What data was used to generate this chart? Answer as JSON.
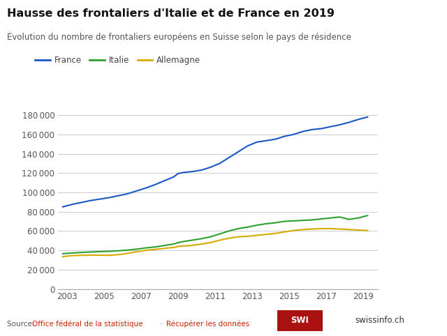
{
  "title": "Hausse des frontaliers d'Italie et de France en 2019",
  "subtitle": "Évolution du nombre de frontaliers européens en Suisse selon le pays de résidence",
  "legend": [
    "France",
    "Italie",
    "Allemagne"
  ],
  "colors": {
    "France": "#1a56c4",
    "Italie": "#2ca02c",
    "Allemagne": "#d4aa00"
  },
  "background_color": "#ffffff",
  "grid_color": "#cccccc",
  "sidebar_colors": [
    "#2d5f9e",
    "#2196b8",
    "#29a9d4"
  ],
  "sidebar_icons": [
    "f",
    "in",
    "w"
  ],
  "ylim": [
    0,
    200000
  ],
  "yticks": [
    0,
    20000,
    40000,
    60000,
    80000,
    100000,
    120000,
    140000,
    160000,
    180000
  ],
  "xticks": [
    2003,
    2005,
    2007,
    2009,
    2011,
    2013,
    2015,
    2017,
    2019
  ],
  "france": {
    "years": [
      2002.75,
      2003.25,
      2003.75,
      2004.25,
      2004.75,
      2005.25,
      2005.75,
      2006.25,
      2006.75,
      2007.25,
      2007.75,
      2008.25,
      2008.75,
      2009.0,
      2009.25,
      2009.75,
      2010.25,
      2010.75,
      2011.25,
      2011.75,
      2012.25,
      2012.75,
      2013.25,
      2013.75,
      2014.25,
      2014.75,
      2015.25,
      2015.75,
      2016.25,
      2016.75,
      2017.25,
      2017.75,
      2018.25,
      2018.75,
      2019.25
    ],
    "values": [
      85000,
      87500,
      89500,
      91500,
      93000,
      94500,
      96500,
      98500,
      101500,
      104500,
      108000,
      112000,
      116000,
      119500,
      120500,
      121500,
      123000,
      126000,
      130000,
      136000,
      142000,
      148000,
      152000,
      153500,
      155000,
      158000,
      160000,
      163000,
      165000,
      166000,
      168000,
      170000,
      172500,
      175500,
      178000
    ]
  },
  "italie": {
    "years": [
      2002.75,
      2003.25,
      2003.75,
      2004.25,
      2004.75,
      2005.25,
      2005.75,
      2006.25,
      2006.75,
      2007.25,
      2007.75,
      2008.25,
      2008.75,
      2009.0,
      2009.25,
      2009.75,
      2010.25,
      2010.75,
      2011.25,
      2011.75,
      2012.25,
      2012.75,
      2013.25,
      2013.75,
      2014.25,
      2014.75,
      2015.25,
      2015.75,
      2016.25,
      2016.75,
      2017.25,
      2017.75,
      2018.25,
      2018.75,
      2019.25
    ],
    "values": [
      36500,
      37200,
      37800,
      38200,
      38700,
      39000,
      39500,
      40200,
      41200,
      42500,
      43500,
      45000,
      46500,
      48000,
      49000,
      50500,
      52000,
      54000,
      57000,
      60000,
      62500,
      64000,
      66000,
      67500,
      68500,
      70000,
      70500,
      71000,
      71500,
      72500,
      73500,
      74500,
      72000,
      73500,
      76000
    ]
  },
  "allemagne": {
    "years": [
      2002.75,
      2003.25,
      2003.75,
      2004.25,
      2004.75,
      2005.25,
      2005.75,
      2006.25,
      2006.75,
      2007.25,
      2007.75,
      2008.25,
      2008.75,
      2009.0,
      2009.25,
      2009.75,
      2010.25,
      2010.75,
      2011.25,
      2011.75,
      2012.25,
      2012.75,
      2013.25,
      2013.75,
      2014.25,
      2014.75,
      2015.25,
      2015.75,
      2016.25,
      2016.75,
      2017.25,
      2017.75,
      2018.25,
      2018.75,
      2019.25
    ],
    "values": [
      33500,
      34500,
      34800,
      35000,
      35000,
      34800,
      35500,
      36800,
      38500,
      40000,
      41000,
      42000,
      43000,
      44000,
      44500,
      45000,
      46500,
      48000,
      50500,
      52500,
      54000,
      54500,
      55500,
      56500,
      57500,
      59000,
      60500,
      61500,
      62000,
      62500,
      62500,
      62000,
      61500,
      61000,
      60500
    ]
  }
}
